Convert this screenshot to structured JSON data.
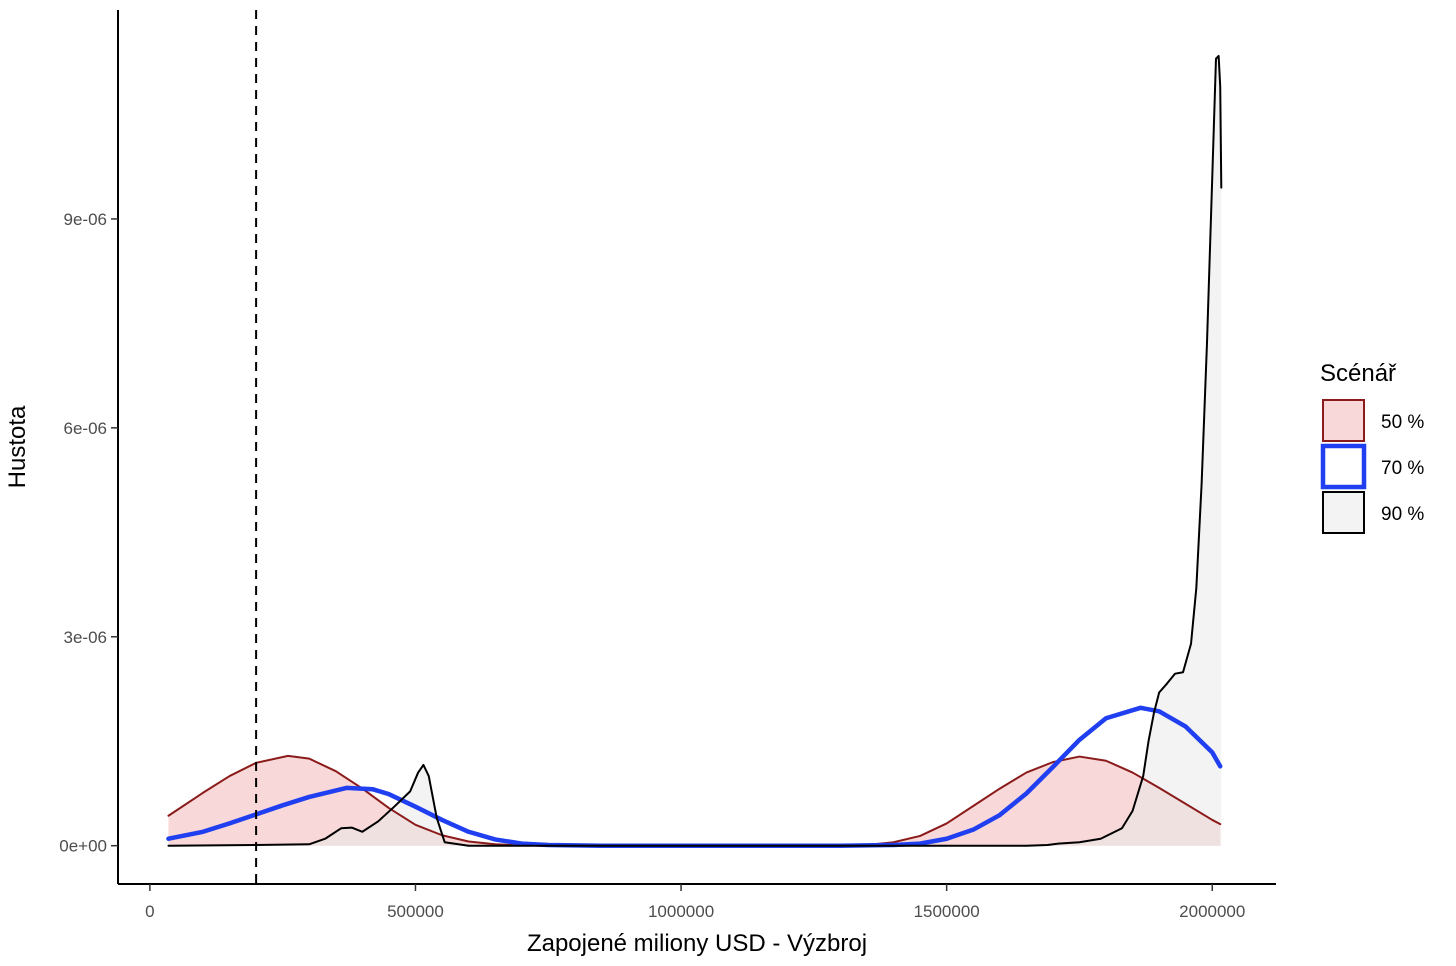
{
  "chart_data": {
    "type": "area",
    "xlabel": "Zapojené miliony USD - Výzbroj",
    "ylabel": "Hustota",
    "xlim": [
      -60000,
      2120000
    ],
    "ylim": [
      -5.5e-07,
      1.2e-05
    ],
    "x_ticks": [
      0,
      500000,
      1000000,
      1500000,
      2000000
    ],
    "x_tick_labels": [
      "0",
      "500000",
      "1000000",
      "1500000",
      "2000000"
    ],
    "y_ticks": [
      0,
      3e-06,
      6e-06,
      9e-06
    ],
    "y_tick_labels": [
      "0e+00",
      "3e-06",
      "6e-06",
      "9e-06"
    ],
    "grid": false,
    "legend_position": "right",
    "vline": {
      "x": 200000,
      "style": "dashed"
    },
    "legend": {
      "title": "Scénář",
      "entries": [
        "50 %",
        "70 %",
        "90 %"
      ]
    },
    "series": [
      {
        "name": "50 %",
        "stroke": "#8b1a1a",
        "fill": "#f2b8b8",
        "stroke_width": 2,
        "points": [
          [
            35000,
            4.3e-07
          ],
          [
            100000,
            7.6e-07
          ],
          [
            150000,
            1e-06
          ],
          [
            200000,
            1.19e-06
          ],
          [
            260000,
            1.29e-06
          ],
          [
            300000,
            1.25e-06
          ],
          [
            350000,
            1.07e-06
          ],
          [
            400000,
            8.2e-07
          ],
          [
            450000,
            5.4e-07
          ],
          [
            500000,
            3e-07
          ],
          [
            550000,
            1.5e-07
          ],
          [
            600000,
            6e-08
          ],
          [
            650000,
            2e-08
          ],
          [
            700000,
            5e-09
          ],
          [
            800000,
            0
          ],
          [
            1000000,
            0
          ],
          [
            1200000,
            0
          ],
          [
            1350000,
            1e-08
          ],
          [
            1400000,
            5e-08
          ],
          [
            1450000,
            1.4e-07
          ],
          [
            1500000,
            3.2e-07
          ],
          [
            1550000,
            5.7e-07
          ],
          [
            1600000,
            8.2e-07
          ],
          [
            1650000,
            1.05e-06
          ],
          [
            1700000,
            1.2e-06
          ],
          [
            1750000,
            1.28e-06
          ],
          [
            1800000,
            1.22e-06
          ],
          [
            1850000,
            1.05e-06
          ],
          [
            1900000,
            8.3e-07
          ],
          [
            1950000,
            6e-07
          ],
          [
            2000000,
            3.7e-07
          ],
          [
            2015000,
            3.1e-07
          ]
        ]
      },
      {
        "name": "70 %",
        "stroke": "#1f3ff0",
        "fill": "none",
        "stroke_width": 4.5,
        "points": [
          [
            35000,
            1e-07
          ],
          [
            100000,
            2e-07
          ],
          [
            150000,
            3.2e-07
          ],
          [
            200000,
            4.5e-07
          ],
          [
            250000,
            5.8e-07
          ],
          [
            300000,
            7e-07
          ],
          [
            370000,
            8.3e-07
          ],
          [
            420000,
            8.1e-07
          ],
          [
            450000,
            7.4e-07
          ],
          [
            500000,
            5.6e-07
          ],
          [
            550000,
            3.7e-07
          ],
          [
            600000,
            2e-07
          ],
          [
            650000,
            9e-08
          ],
          [
            700000,
            3e-08
          ],
          [
            750000,
            1e-08
          ],
          [
            850000,
            0
          ],
          [
            1000000,
            0
          ],
          [
            1300000,
            0
          ],
          [
            1400000,
            1e-08
          ],
          [
            1450000,
            3e-08
          ],
          [
            1500000,
            1e-07
          ],
          [
            1550000,
            2.3e-07
          ],
          [
            1600000,
            4.4e-07
          ],
          [
            1650000,
            7.5e-07
          ],
          [
            1700000,
            1.13e-06
          ],
          [
            1750000,
            1.52e-06
          ],
          [
            1800000,
            1.83e-06
          ],
          [
            1865000,
            1.98e-06
          ],
          [
            1900000,
            1.93e-06
          ],
          [
            1950000,
            1.71e-06
          ],
          [
            2000000,
            1.34e-06
          ],
          [
            2015000,
            1.14e-06
          ]
        ]
      },
      {
        "name": "90 %",
        "stroke": "#000000",
        "fill": "#e9e9e9",
        "stroke_width": 2,
        "points": [
          [
            35000,
            0
          ],
          [
            200000,
            1e-08
          ],
          [
            300000,
            2e-08
          ],
          [
            330000,
            1e-07
          ],
          [
            360000,
            2.5e-07
          ],
          [
            380000,
            2.6e-07
          ],
          [
            400000,
            2e-07
          ],
          [
            430000,
            3.5e-07
          ],
          [
            460000,
            5.6e-07
          ],
          [
            490000,
            7.8e-07
          ],
          [
            505000,
            1.05e-06
          ],
          [
            515000,
            1.16e-06
          ],
          [
            525000,
            1e-06
          ],
          [
            540000,
            4e-07
          ],
          [
            555000,
            5e-08
          ],
          [
            600000,
            0
          ],
          [
            1000000,
            0
          ],
          [
            1650000,
            0
          ],
          [
            1690000,
            1e-08
          ],
          [
            1710000,
            3e-08
          ],
          [
            1750000,
            5e-08
          ],
          [
            1790000,
            1e-07
          ],
          [
            1830000,
            2.5e-07
          ],
          [
            1850000,
            5e-07
          ],
          [
            1870000,
            1e-06
          ],
          [
            1880000,
            1.5e-06
          ],
          [
            1890000,
            1.9e-06
          ],
          [
            1900000,
            2.2e-06
          ],
          [
            1915000,
            2.33e-06
          ],
          [
            1930000,
            2.47e-06
          ],
          [
            1945000,
            2.49e-06
          ],
          [
            1960000,
            2.9e-06
          ],
          [
            1970000,
            3.7e-06
          ],
          [
            1980000,
            5.2e-06
          ],
          [
            1990000,
            7.2e-06
          ],
          [
            2000000,
            9.6e-06
          ],
          [
            2007000,
            1.13e-05
          ],
          [
            2012000,
            1.134e-05
          ],
          [
            2015000,
            1.09e-05
          ],
          [
            2017000,
            9.45e-06
          ]
        ]
      }
    ]
  }
}
